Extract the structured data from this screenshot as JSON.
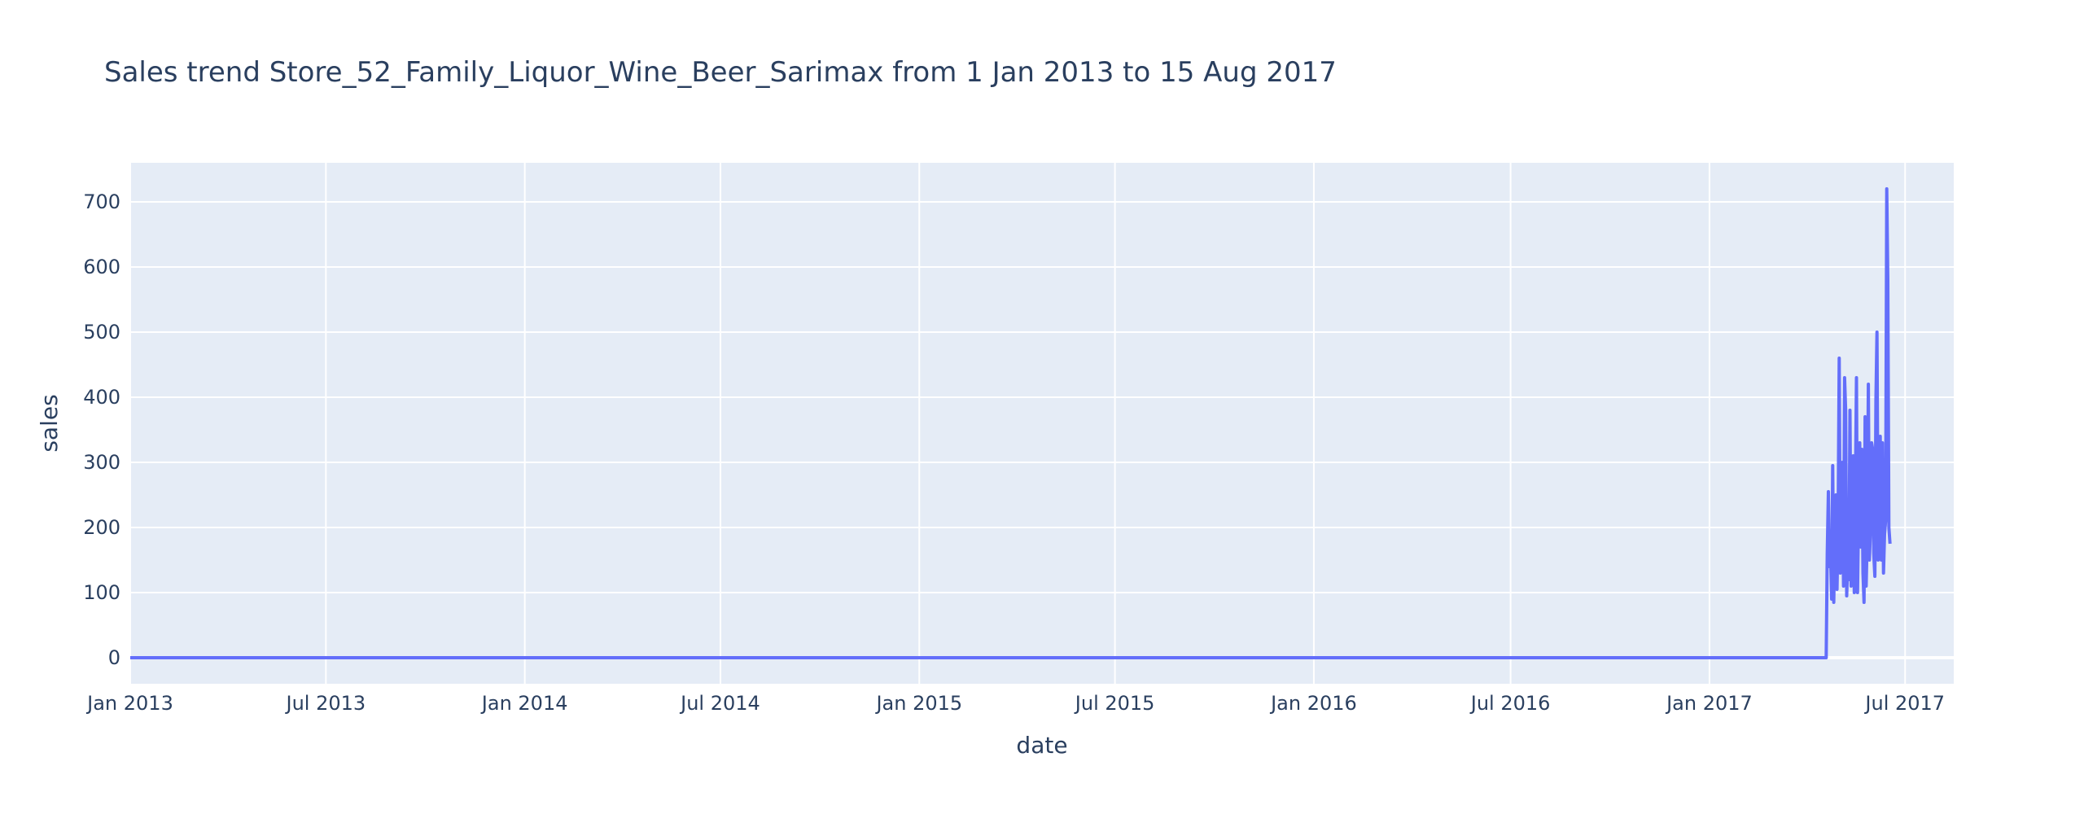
{
  "chart_data": {
    "type": "line",
    "title": "Sales trend Store_52_Family_Liquor_Wine_Beer_Sarimax from  1 Jan 2013 to 15 Aug 2017",
    "xlabel": "date",
    "ylabel": "sales",
    "xlim": [
      "2013-01-01",
      "2017-08-15"
    ],
    "ylim": [
      -40,
      760
    ],
    "grid": true,
    "x_ticks": [
      {
        "date": "2013-01-01",
        "label": "Jan 2013"
      },
      {
        "date": "2013-07-01",
        "label": "Jul 2013"
      },
      {
        "date": "2014-01-01",
        "label": "Jan 2014"
      },
      {
        "date": "2014-07-01",
        "label": "Jul 2014"
      },
      {
        "date": "2015-01-01",
        "label": "Jan 2015"
      },
      {
        "date": "2015-07-01",
        "label": "Jul 2015"
      },
      {
        "date": "2016-01-01",
        "label": "Jan 2016"
      },
      {
        "date": "2016-07-01",
        "label": "Jul 2016"
      },
      {
        "date": "2017-01-01",
        "label": "Jan 2017"
      },
      {
        "date": "2017-07-01",
        "label": "Jul 2017"
      }
    ],
    "y_ticks": [
      0,
      100,
      200,
      300,
      400,
      500,
      600,
      700
    ],
    "series": [
      {
        "color": "#636efa",
        "points": [
          [
            "2013-01-01",
            0
          ],
          [
            "2017-04-19",
            0
          ],
          [
            "2017-04-20",
            160
          ],
          [
            "2017-04-21",
            255
          ],
          [
            "2017-04-22",
            140
          ],
          [
            "2017-04-23",
            165
          ],
          [
            "2017-04-24",
            90
          ],
          [
            "2017-04-25",
            295
          ],
          [
            "2017-04-26",
            85
          ],
          [
            "2017-04-27",
            180
          ],
          [
            "2017-04-28",
            250
          ],
          [
            "2017-04-29",
            105
          ],
          [
            "2017-04-30",
            200
          ],
          [
            "2017-05-01",
            460
          ],
          [
            "2017-05-02",
            130
          ],
          [
            "2017-05-03",
            140
          ],
          [
            "2017-05-04",
            300
          ],
          [
            "2017-05-05",
            110
          ],
          [
            "2017-05-06",
            430
          ],
          [
            "2017-05-07",
            380
          ],
          [
            "2017-05-08",
            95
          ],
          [
            "2017-05-09",
            150
          ],
          [
            "2017-05-10",
            120
          ],
          [
            "2017-05-11",
            380
          ],
          [
            "2017-05-12",
            110
          ],
          [
            "2017-05-13",
            150
          ],
          [
            "2017-05-14",
            310
          ],
          [
            "2017-05-15",
            100
          ],
          [
            "2017-05-16",
            260
          ],
          [
            "2017-05-17",
            430
          ],
          [
            "2017-05-18",
            100
          ],
          [
            "2017-05-19",
            230
          ],
          [
            "2017-05-20",
            330
          ],
          [
            "2017-05-21",
            170
          ],
          [
            "2017-05-22",
            320
          ],
          [
            "2017-05-23",
            130
          ],
          [
            "2017-05-24",
            85
          ],
          [
            "2017-05-25",
            370
          ],
          [
            "2017-05-26",
            110
          ],
          [
            "2017-05-27",
            190
          ],
          [
            "2017-05-28",
            420
          ],
          [
            "2017-05-29",
            150
          ],
          [
            "2017-05-30",
            200
          ],
          [
            "2017-05-31",
            330
          ],
          [
            "2017-06-01",
            320
          ],
          [
            "2017-06-02",
            160
          ],
          [
            "2017-06-03",
            125
          ],
          [
            "2017-06-04",
            395
          ],
          [
            "2017-06-05",
            500
          ],
          [
            "2017-06-06",
            150
          ],
          [
            "2017-06-07",
            230
          ],
          [
            "2017-06-08",
            340
          ],
          [
            "2017-06-09",
            150
          ],
          [
            "2017-06-10",
            330
          ],
          [
            "2017-06-11",
            130
          ],
          [
            "2017-06-12",
            190
          ],
          [
            "2017-06-13",
            210
          ],
          [
            "2017-06-14",
            720
          ],
          [
            "2017-06-15",
            580
          ],
          [
            "2017-06-16",
            200
          ],
          [
            "2017-06-17",
            175
          ]
        ]
      }
    ]
  }
}
